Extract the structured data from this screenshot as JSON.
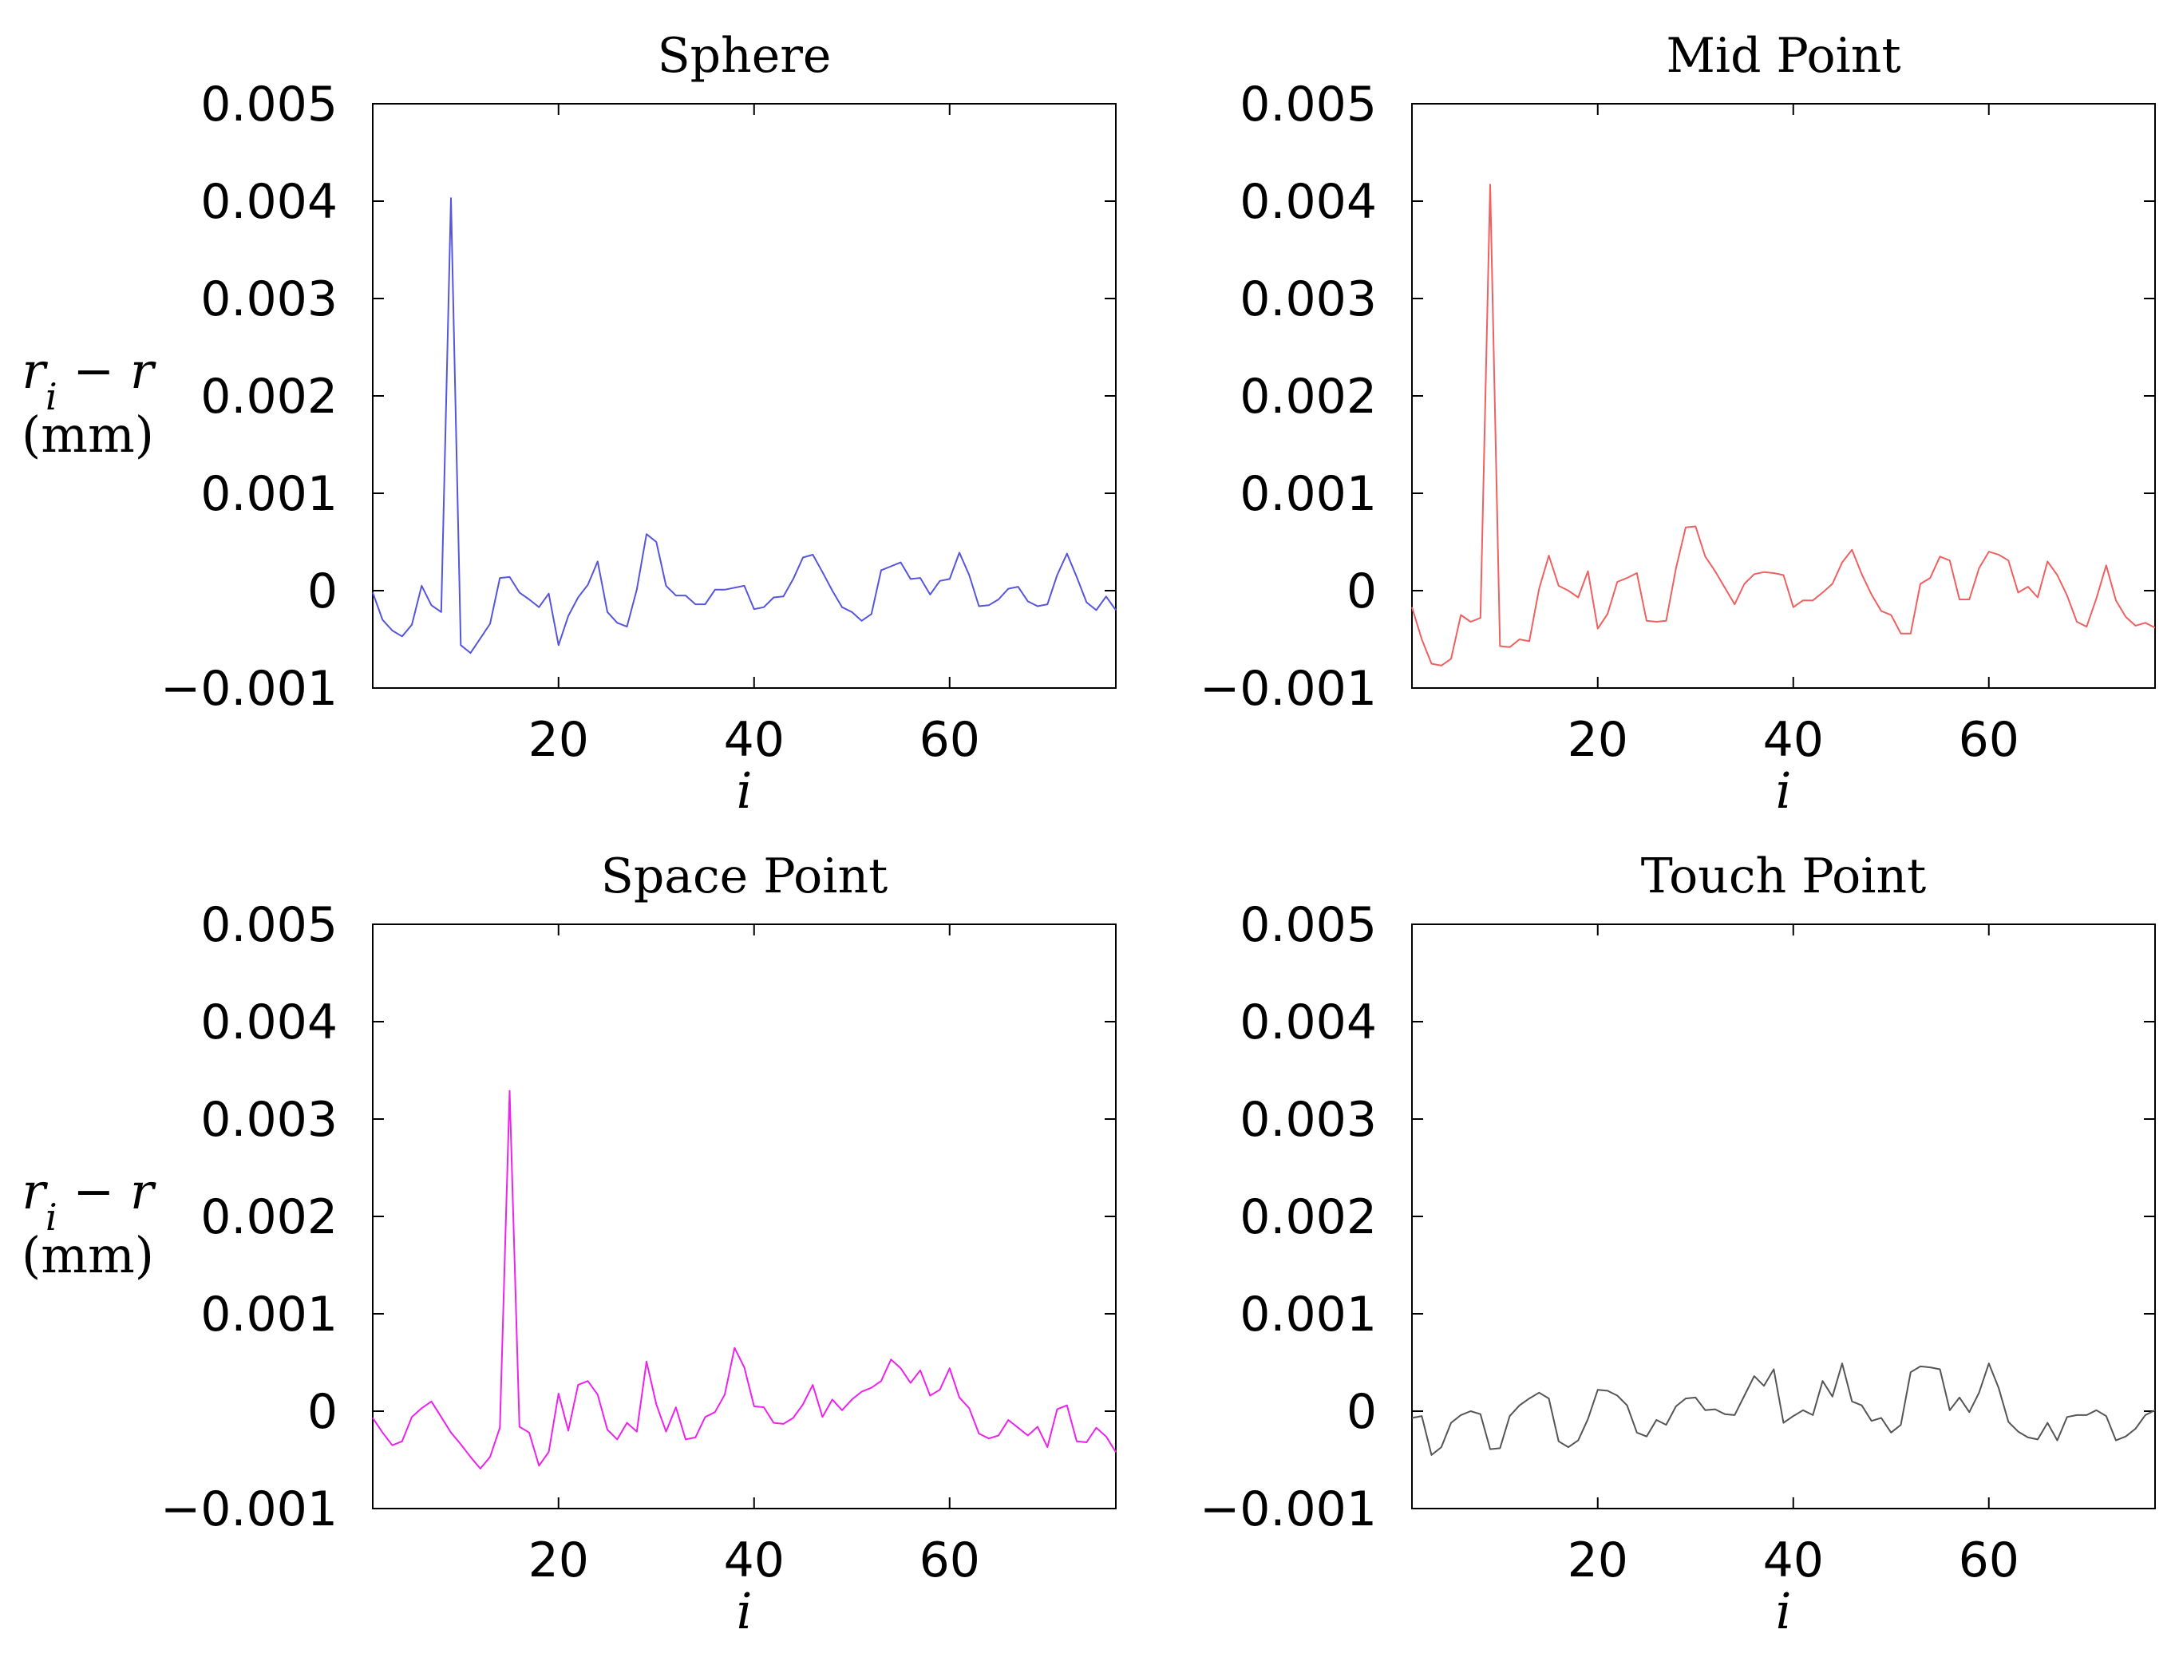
{
  "chart_data": [
    {
      "type": "line",
      "title": "Sphere",
      "xlabel": "i",
      "ylabel": [
        "r_i − r",
        "(mm)"
      ],
      "xlim": [
        1,
        77
      ],
      "ylim": [
        -0.001,
        0.005
      ],
      "xticks": [
        "20",
        "40",
        "60"
      ],
      "yticks": [
        "0.005",
        "0.004",
        "0.003",
        "0.002",
        "0.001",
        "0",
        "−0.001"
      ],
      "color": "#5555dd",
      "series": [
        {
          "x": [
            1,
            2,
            3,
            4,
            5,
            6,
            7,
            8,
            9,
            10,
            11,
            12,
            13,
            14,
            15,
            16,
            17,
            18,
            19,
            20,
            21,
            22,
            23,
            24,
            25,
            26,
            27,
            28,
            29,
            30,
            31,
            32,
            33,
            34,
            35,
            36,
            37,
            38,
            39,
            40,
            41,
            42,
            43,
            44,
            45,
            46,
            47,
            48,
            49,
            50,
            51,
            52,
            53,
            54,
            55,
            56,
            57,
            58,
            59,
            60,
            61,
            62,
            63,
            64,
            65,
            66,
            67,
            68,
            69,
            70,
            71,
            72,
            73,
            74,
            75,
            76,
            77
          ],
          "values": [
            -2e-05,
            -0.0003,
            -0.00041,
            -0.00047,
            -0.00035,
            5e-05,
            -0.00015,
            -0.00022,
            0.00403,
            -0.00056,
            -0.00064,
            -0.00049,
            -0.00034,
            0.00013,
            0.00014,
            -2e-05,
            -9e-05,
            -0.00017,
            -3e-05,
            -0.00056,
            -0.00026,
            -7e-05,
            6e-05,
            0.0003,
            -0.00022,
            -0.00033,
            -0.00037,
            1e-05,
            0.00058,
            0.0005,
            5e-05,
            -5e-05,
            -5e-05,
            -0.00014,
            -0.00014,
            1e-05,
            1e-05,
            3e-05,
            5e-05,
            -0.00019,
            -0.00017,
            -7e-05,
            -6e-05,
            0.00012,
            0.00034,
            0.00037,
            0.00019,
            0,
            -0.00017,
            -0.00022,
            -0.00031,
            -0.00024,
            0.00021,
            0.00025,
            0.00029,
            0.00012,
            0.00013,
            -4e-05,
            0.0001,
            0.00012,
            0.00039,
            0.00016,
            -0.00016,
            -0.00015,
            -9e-05,
            2e-05,
            4e-05,
            -0.00011,
            -0.00016,
            -0.00014,
            0.00016,
            0.00038,
            0.00014,
            -0.00012,
            -0.0002,
            -6e-05,
            -0.0002
          ]
        }
      ]
    },
    {
      "type": "line",
      "title": "Mid Point",
      "xlabel": "i",
      "ylabel": [],
      "xlim": [
        1,
        77
      ],
      "ylim": [
        -0.001,
        0.005
      ],
      "xticks": [
        "20",
        "40",
        "60"
      ],
      "yticks": [
        "0.005",
        "0.004",
        "0.003",
        "0.002",
        "0.001",
        "0",
        "−0.001"
      ],
      "color": "#f06060",
      "series": [
        {
          "x": [
            1,
            2,
            3,
            4,
            5,
            6,
            7,
            8,
            9,
            10,
            11,
            12,
            13,
            14,
            15,
            16,
            17,
            18,
            19,
            20,
            21,
            22,
            23,
            24,
            25,
            26,
            27,
            28,
            29,
            30,
            31,
            32,
            33,
            34,
            35,
            36,
            37,
            38,
            39,
            40,
            41,
            42,
            43,
            44,
            45,
            46,
            47,
            48,
            49,
            50,
            51,
            52,
            53,
            54,
            55,
            56,
            57,
            58,
            59,
            60,
            61,
            62,
            63,
            64,
            65,
            66,
            67,
            68,
            69,
            70,
            71,
            72,
            73,
            74,
            75,
            76,
            77
          ],
          "values": [
            -0.00017,
            -0.0005,
            -0.00075,
            -0.00077,
            -0.0007,
            -0.00025,
            -0.00032,
            -0.00028,
            0.00417,
            -0.00057,
            -0.00058,
            -0.0005,
            -0.00052,
            2e-05,
            0.00036,
            5e-05,
            0,
            -7e-05,
            0.0002,
            -0.00039,
            -0.00024,
            9e-05,
            0.00013,
            0.00018,
            -0.00031,
            -0.00032,
            -0.00031,
            0.00023,
            0.00065,
            0.00066,
            0.00035,
            0.0002,
            3e-05,
            -0.00014,
            7e-05,
            0.00017,
            0.00019,
            0.00018,
            0.00016,
            -0.00017,
            -0.0001,
            -0.0001,
            -2e-05,
            7e-05,
            0.00029,
            0.00042,
            0.00017,
            -4e-05,
            -0.00021,
            -0.00025,
            -0.00044,
            -0.00044,
            7e-05,
            0.00013,
            0.00035,
            0.00031,
            -9e-05,
            -9e-05,
            0.00023,
            0.0004,
            0.00037,
            0.00031,
            -2e-05,
            4e-05,
            -7e-05,
            0.0003,
            0.00016,
            -5e-05,
            -0.00032,
            -0.00037,
            -8e-05,
            0.00026,
            -0.0001,
            -0.00027,
            -0.00036,
            -0.00033,
            -0.00038
          ]
        }
      ]
    },
    {
      "type": "line",
      "title": "Space Point",
      "xlabel": "i",
      "ylabel": [
        "r_i − r",
        "(mm)"
      ],
      "xlim": [
        1,
        77
      ],
      "ylim": [
        -0.001,
        0.005
      ],
      "xticks": [
        "20",
        "40",
        "60"
      ],
      "yticks": [
        "0.005",
        "0.004",
        "0.003",
        "0.002",
        "0.001",
        "0",
        "−0.001"
      ],
      "color": "#ee22ee",
      "series": [
        {
          "x": [
            1,
            2,
            3,
            4,
            5,
            6,
            7,
            8,
            9,
            10,
            11,
            12,
            13,
            14,
            15,
            16,
            17,
            18,
            19,
            20,
            21,
            22,
            23,
            24,
            25,
            26,
            27,
            28,
            29,
            30,
            31,
            32,
            33,
            34,
            35,
            36,
            37,
            38,
            39,
            40,
            41,
            42,
            43,
            44,
            45,
            46,
            47,
            48,
            49,
            50,
            51,
            52,
            53,
            54,
            55,
            56,
            57,
            58,
            59,
            60,
            61,
            62,
            63,
            64,
            65,
            66,
            67,
            68,
            69,
            70,
            71,
            72,
            73,
            74,
            75,
            76,
            77
          ],
          "values": [
            -7e-05,
            -0.00022,
            -0.00035,
            -0.00031,
            -6e-05,
            3e-05,
            0.0001,
            -6e-05,
            -0.00022,
            -0.00034,
            -0.00047,
            -0.00059,
            -0.00047,
            -0.00017,
            0.00329,
            -0.00016,
            -0.00022,
            -0.00056,
            -0.00042,
            0.00018,
            -0.0002,
            0.00027,
            0.00031,
            0.00017,
            -0.00019,
            -0.00029,
            -0.00012,
            -0.00021,
            0.00051,
            7e-05,
            -0.00021,
            4e-05,
            -0.00029,
            -0.00027,
            -6e-05,
            -1e-05,
            0.00017,
            0.00065,
            0.00045,
            5e-05,
            4e-05,
            -0.00012,
            -0.00013,
            -7e-05,
            7e-05,
            0.00027,
            -6e-05,
            0.00012,
            1e-05,
            0.00012,
            0.0002,
            0.00024,
            0.00031,
            0.00053,
            0.00044,
            0.00029,
            0.00042,
            0.00016,
            0.00022,
            0.00044,
            0.00014,
            3e-05,
            -0.00023,
            -0.00028,
            -0.00025,
            -9e-05,
            -0.00017,
            -0.00025,
            -0.00016,
            -0.00037,
            2e-05,
            6e-05,
            -0.00031,
            -0.00032,
            -0.00017,
            -0.00026,
            -0.00042
          ]
        }
      ]
    },
    {
      "type": "line",
      "title": "Touch Point",
      "xlabel": "i",
      "ylabel": [],
      "xlim": [
        1,
        77
      ],
      "ylim": [
        -0.001,
        0.005
      ],
      "xticks": [
        "20",
        "40",
        "60"
      ],
      "yticks": [
        "0.005",
        "0.004",
        "0.003",
        "0.002",
        "0.001",
        "0",
        "−0.001"
      ],
      "color": "#555555",
      "series": [
        {
          "x": [
            1,
            2,
            3,
            4,
            5,
            6,
            7,
            8,
            9,
            10,
            11,
            12,
            13,
            14,
            15,
            16,
            17,
            18,
            19,
            20,
            21,
            22,
            23,
            24,
            25,
            26,
            27,
            28,
            29,
            30,
            31,
            32,
            33,
            34,
            35,
            36,
            37,
            38,
            39,
            40,
            41,
            42,
            43,
            44,
            45,
            46,
            47,
            48,
            49,
            50,
            51,
            52,
            53,
            54,
            55,
            56,
            57,
            58,
            59,
            60,
            61,
            62,
            63,
            64,
            65,
            66,
            67,
            68,
            69,
            70,
            71,
            72,
            73,
            74,
            75,
            76,
            77
          ],
          "values": [
            -7e-05,
            -5e-05,
            -0.00045,
            -0.00037,
            -0.00012,
            -4e-05,
            0,
            -3e-05,
            -0.00039,
            -0.00038,
            -5e-05,
            6e-05,
            0.00013,
            0.00019,
            0.00013,
            -0.00031,
            -0.00037,
            -0.0003,
            -8e-05,
            0.00022,
            0.00021,
            0.00016,
            6e-05,
            -0.00022,
            -0.00026,
            -9e-05,
            -0.00014,
            5e-05,
            0.00013,
            0.00014,
            1e-05,
            2e-05,
            -3e-05,
            -4e-05,
            0.00016,
            0.00036,
            0.00026,
            0.00043,
            -0.00012,
            -5e-05,
            1e-05,
            -4e-05,
            0.00031,
            0.00015,
            0.00049,
            0.0001,
            6e-05,
            -0.0001,
            -7e-05,
            -0.00022,
            -0.00014,
            0.0004,
            0.00046,
            0.00045,
            0.00043,
            1e-05,
            0.00014,
            -1e-05,
            0.00019,
            0.00049,
            0.00024,
            -0.00011,
            -0.00021,
            -0.00027,
            -0.00029,
            -0.00012,
            -0.0003,
            -6e-05,
            -4e-05,
            -4e-05,
            1e-05,
            -5e-05,
            -0.0003,
            -0.00026,
            -0.00018,
            -4e-05,
            1e-05
          ]
        }
      ]
    }
  ]
}
